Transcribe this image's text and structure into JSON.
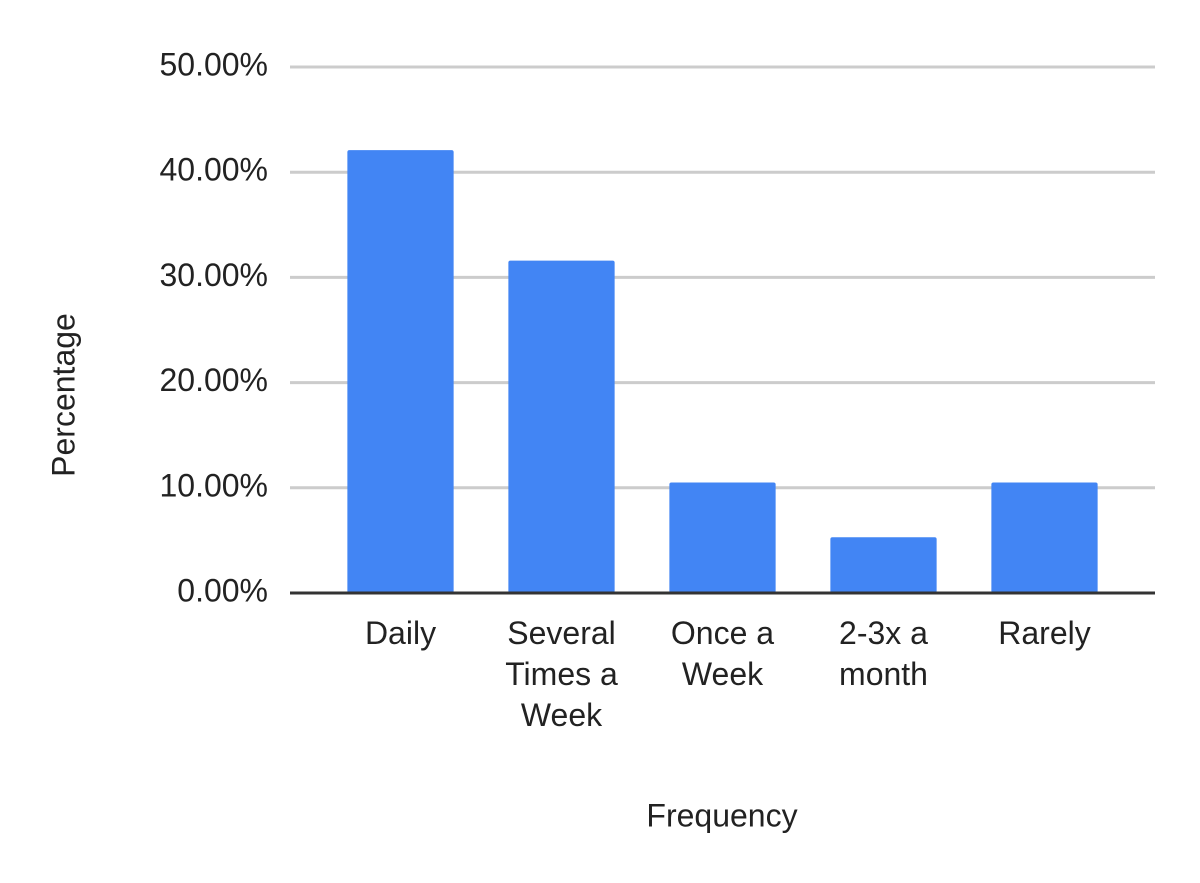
{
  "chart_data": {
    "type": "bar",
    "x_label": "Frequency",
    "y_label": "Percentage",
    "categories": [
      "Daily",
      "Several Times a Week",
      "Once a Week",
      "2-3x a month",
      "Rarely"
    ],
    "values": [
      42.1,
      31.6,
      10.5,
      5.3,
      10.5
    ],
    "color": "#4285f4",
    "ylim": [
      0,
      50
    ],
    "yticks": [
      {
        "value": 0,
        "label": "0.00%"
      },
      {
        "value": 10,
        "label": "10.00%"
      },
      {
        "value": 20,
        "label": "20.00%"
      },
      {
        "value": 30,
        "label": "30.00%"
      },
      {
        "value": 40,
        "label": "40.00%"
      },
      {
        "value": 50,
        "label": "50.00%"
      }
    ],
    "grid": true
  }
}
